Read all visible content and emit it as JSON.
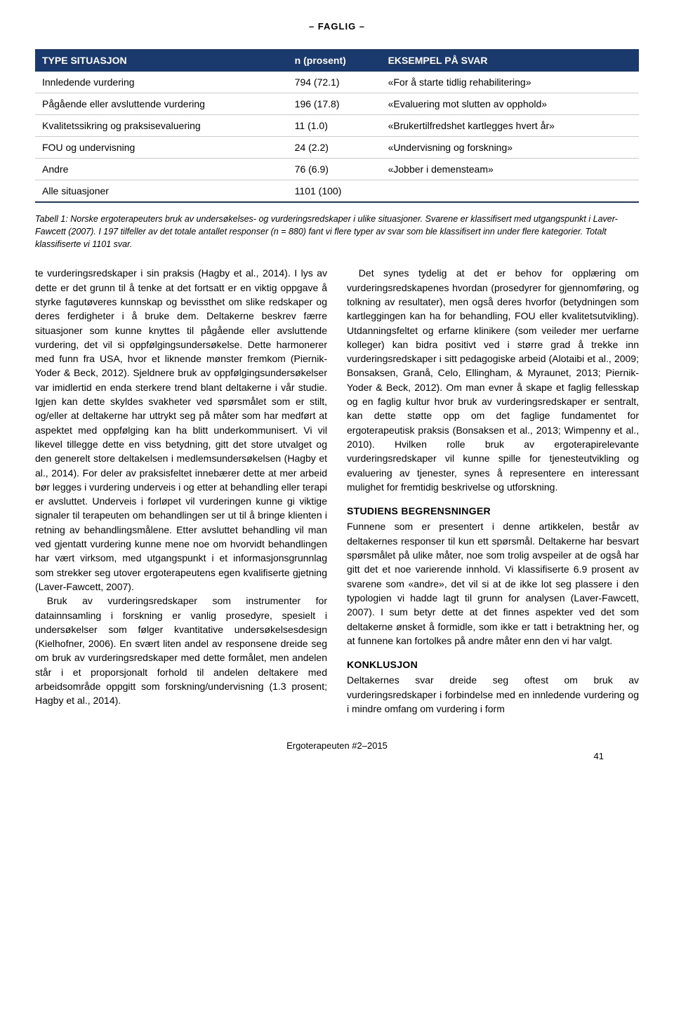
{
  "header": {
    "section_label": "– FAGLIG –"
  },
  "table": {
    "header_bg": "#1a3a6e",
    "header_fg": "#ffffff",
    "columns": [
      "TYPE SITUASJON",
      "n (prosent)",
      "EKSEMPEL PÅ SVAR"
    ],
    "rows": [
      [
        "Innledende vurdering",
        "794 (72.1)",
        "«For å starte tidlig rehabilitering»"
      ],
      [
        "Pågående eller avsluttende vurdering",
        "196 (17.8)",
        "«Evaluering mot slutten av opphold»"
      ],
      [
        "Kvalitetssikring og praksisevaluering",
        "11 (1.0)",
        "«Brukertilfredshet kartlegges hvert år»"
      ],
      [
        "FOU og undervisning",
        "24 (2.2)",
        "«Undervisning og forskning»"
      ],
      [
        "Andre",
        "76 (6.9)",
        "«Jobber i demensteam»"
      ],
      [
        "Alle situasjoner",
        "1101 (100)",
        ""
      ]
    ],
    "caption": "Tabell 1: Norske ergoterapeuters bruk av undersøkelses- og vurderingsredskaper i ulike situasjoner. Svarene er klassifisert med utgangspunkt i Laver-Fawcett (2007). I 197 tilfeller av det totale antallet responser (n = 880) fant vi flere typer av svar som ble klassifisert inn under flere kategorier. Totalt klassifiserte vi 1101 svar."
  },
  "body": {
    "left": {
      "p1": "te vurderingsredskaper i sin praksis (Hagby et al., 2014). I lys av dette er det grunn til å tenke at det fortsatt er en viktig oppgave å styrke fagutøveres kunnskap og bevissthet om slike redskaper og deres ferdigheter i å bruke dem. Deltakerne beskrev færre situasjoner som kunne knyttes til pågående eller avsluttende vurdering, det vil si oppfølgingsundersøkelse. Dette harmonerer med funn fra USA, hvor et liknende mønster fremkom (Piernik-Yoder & Beck, 2012). Sjeldnere bruk av oppfølgingsundersøkelser var imidlertid en enda sterkere trend blant deltakerne i vår studie. Igjen kan dette skyldes svakheter ved spørsmålet som er stilt, og/eller at deltakerne har uttrykt seg på måter som har medført at aspektet med oppfølging kan ha blitt underkommunisert. Vi vil likevel tillegge dette en viss betydning, gitt det store utvalget og den generelt store deltakelsen i medlemsundersøkelsen (Hagby et al., 2014). For deler av praksisfeltet innebærer dette at mer arbeid bør legges i vurdering underveis i og etter at behandling eller terapi er avsluttet. Underveis i forløpet vil vurderingen kunne gi viktige signaler til terapeuten om behandlingen ser ut til å bringe klienten i retning av behandlingsmålene. Etter avsluttet behandling vil man ved gjentatt vurdering kunne mene noe om hvorvidt behandlingen har vært virksom, med utgangspunkt i et informasjonsgrunnlag som strekker seg utover ergoterapeutens egen kvalifiserte gjetning (Laver-Fawcett, 2007).",
      "p2": "Bruk av vurderingsredskaper som instrumenter for datainnsamling i forskning er vanlig prosedyre, spesielt i undersøkelser som følger kvantitative undersøkelsesdesign (Kielhofner, 2006). En svært liten andel av responsene dreide seg om bruk av vurderingsredskaper med dette formålet, men andelen står i et proporsjonalt forhold til andelen deltakere med arbeidsområde oppgitt som forskning/undervisning (1.3 prosent; Hagby et al., 2014)."
    },
    "right": {
      "p1": "Det synes tydelig at det er behov for opplæring om vurderingsredskapenes hvordan (prosedyrer for gjennomføring, og tolkning av resultater), men også deres hvorfor (betydningen som kartleggingen kan ha for behandling, FOU eller kvalitetsutvikling). Utdanningsfeltet og erfarne klinikere (som veileder mer uerfarne kolleger) kan bidra positivt ved i større grad å trekke inn vurderingsredskaper i sitt pedagogiske arbeid (Alotaibi et al., 2009; Bonsaksen, Granå, Celo, Ellingham, & Myraunet, 2013; Piernik-Yoder & Beck, 2012). Om man evner å skape et faglig fellesskap og en faglig kultur hvor bruk av vurderingsredskaper er sentralt, kan dette støtte opp om det faglige fundamentet for ergoterapeutisk praksis (Bonsaksen et al., 2013; Wimpenny et al., 2010). Hvilken rolle bruk av ergoterapirelevante vurderingsredskaper vil kunne spille for tjenesteutvikling og evaluering av tjenester, synes å representere en interessant mulighet for fremtidig beskrivelse og utforskning.",
      "h1": "STUDIENS BEGRENSNINGER",
      "p2": "Funnene som er presentert i denne artikkelen, består av deltakernes responser til kun ett spørsmål. Deltakerne har besvart spørsmålet på ulike måter, noe som trolig avspeiler at de også har gitt det et noe varierende innhold. Vi klassifiserte 6.9 prosent av svarene som «andre», det vil si at de ikke lot seg plassere i den typologien vi hadde lagt til grunn for analysen (Laver-Fawcett, 2007). I sum betyr dette at det finnes aspekter ved det som deltakerne ønsket å formidle, som ikke er tatt i betraktning her, og at funnene kan fortolkes på andre måter enn den vi har valgt.",
      "h2": "KONKLUSJON",
      "p3": "Deltakernes svar dreide seg oftest om bruk av vurderingsredskaper i forbindelse med en innledende vurdering og i mindre omfang om vurdering i form"
    }
  },
  "footer": {
    "center": "Ergoterapeuten #2–2015",
    "page": "41"
  }
}
